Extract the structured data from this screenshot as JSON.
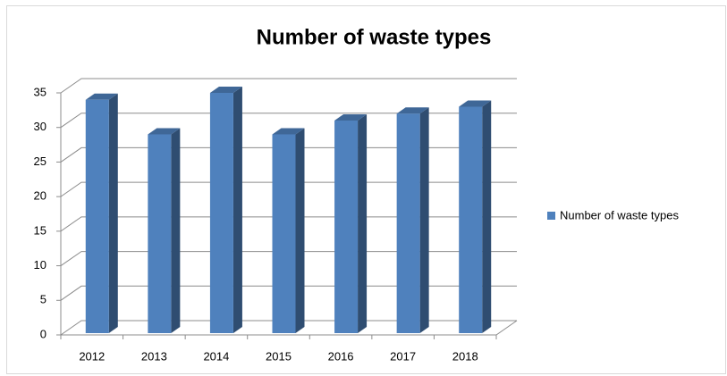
{
  "chart_data": {
    "type": "bar",
    "title": "Number of waste types",
    "categories": [
      "2012",
      "2013",
      "2014",
      "2015",
      "2016",
      "2017",
      "2018"
    ],
    "series": [
      {
        "name": "Number of waste types",
        "color": "#4f81bd",
        "values": [
          34,
          29,
          35,
          29,
          31,
          32,
          33
        ]
      }
    ],
    "ylim": [
      0,
      35
    ],
    "yticks": [
      0,
      5,
      10,
      15,
      20,
      25,
      30,
      35
    ],
    "grid": true,
    "legend": "right"
  }
}
